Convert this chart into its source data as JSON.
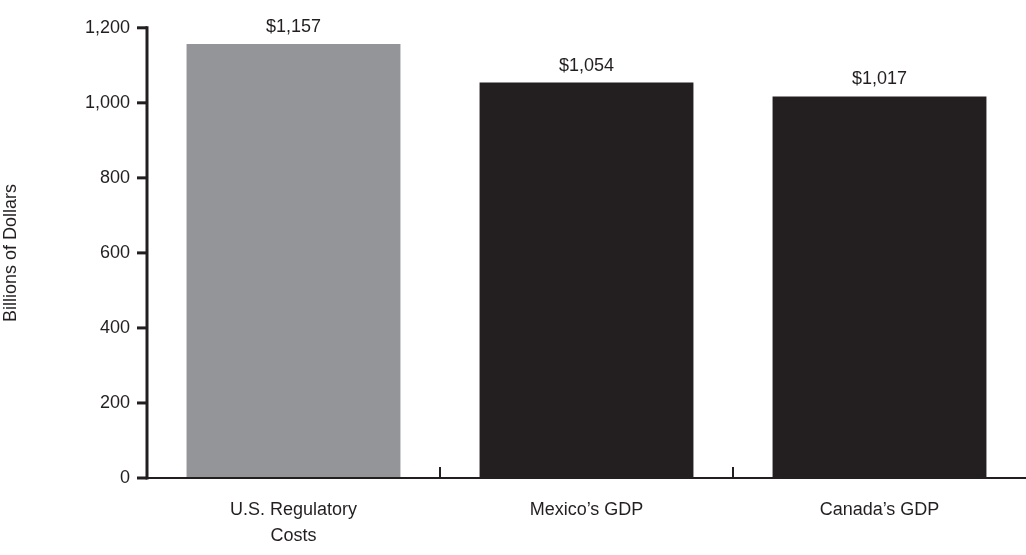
{
  "chart_data": {
    "type": "bar",
    "ylabel": "Billions of Dollars",
    "categories": [
      "U.S. Regulatory Costs",
      "Mexico’s GDP",
      "Canada’s GDP"
    ],
    "values": [
      1157,
      1054,
      1017
    ],
    "colors": [
      "#939598",
      "#231f20",
      "#231f20"
    ],
    "value_labels": [
      "$1,157",
      "$1,054",
      "$1,017"
    ],
    "ylim": [
      0,
      1200
    ],
    "yticks": [
      0,
      200,
      400,
      600,
      800,
      {
        "value": 1000,
        "label": "1,000"
      },
      {
        "value": 1200,
        "label": "1,200"
      }
    ]
  }
}
